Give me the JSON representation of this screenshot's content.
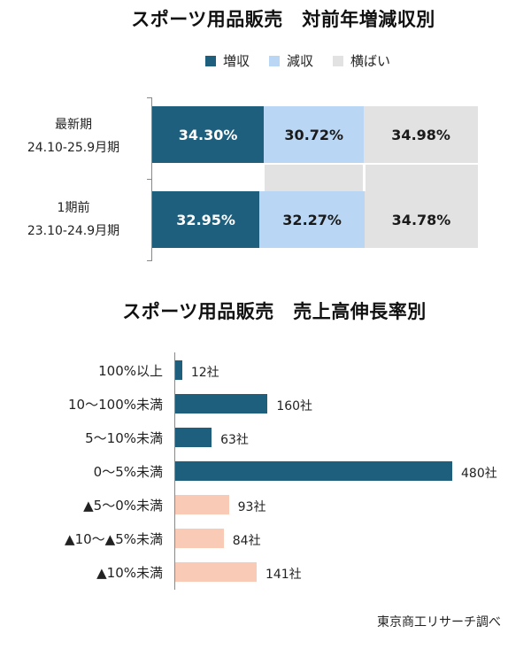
{
  "chart_data": [
    {
      "type": "bar",
      "stacked": true,
      "orientation": "horizontal",
      "title": "スポーツ用品販売　対前年増減収別",
      "legend": [
        "増収",
        "減収",
        "横ばい"
      ],
      "categories": [
        {
          "line1": "最新期",
          "line2": "24.10-25.9月期"
        },
        {
          "line1": "1期前",
          "line2": "23.10-24.9月期"
        }
      ],
      "series": [
        {
          "name": "増収",
          "color": "#1f5f7e",
          "values": [
            34.3,
            32.95
          ],
          "labels": [
            "34.30%",
            "32.95%"
          ]
        },
        {
          "name": "減収",
          "color": "#b9d7f4",
          "values": [
            30.72,
            32.27
          ],
          "labels": [
            "30.72%",
            "32.27%"
          ]
        },
        {
          "name": "横ばい",
          "color": "#e2e2e2",
          "values": [
            34.98,
            34.78
          ],
          "labels": [
            "34.98%",
            "34.78%"
          ]
        }
      ],
      "xlim": [
        0,
        100
      ]
    },
    {
      "type": "bar",
      "orientation": "horizontal",
      "title": "スポーツ用品販売　売上高伸長率別",
      "categories": [
        "100%以上",
        "10～100%未満",
        "5～10%未満",
        "0～5%未満",
        "▲5～0%未満",
        "▲10～▲5%未満",
        "▲10%未満"
      ],
      "values": [
        12,
        160,
        63,
        480,
        93,
        84,
        141
      ],
      "value_labels": [
        "12社",
        "160社",
        "63社",
        "480社",
        "93社",
        "84社",
        "141社"
      ],
      "colors": [
        "#1f5f7e",
        "#1f5f7e",
        "#1f5f7e",
        "#1f5f7e",
        "#f9cbb6",
        "#f9cbb6",
        "#f9cbb6"
      ],
      "xlim": [
        0,
        480
      ]
    }
  ],
  "source": "東京商工リサーチ調べ"
}
